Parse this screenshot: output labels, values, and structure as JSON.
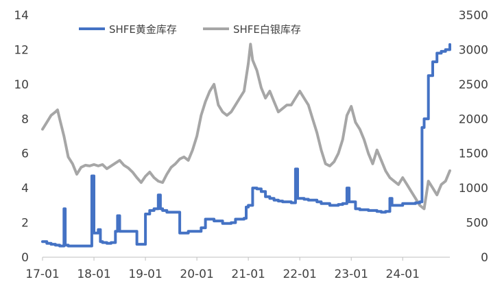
{
  "chart_data": {
    "type": "line",
    "title": "",
    "xlabel": "",
    "ylabel": "",
    "y2label": "",
    "x_tick_labels": [
      "17-01",
      "18-01",
      "19-01",
      "20-01",
      "21-01",
      "22-01",
      "23-01",
      "24-01"
    ],
    "x_ticks_index": [
      0,
      12,
      24,
      36,
      48,
      60,
      72,
      84
    ],
    "ylim": [
      0,
      14
    ],
    "y_ticks": [
      0,
      2,
      4,
      6,
      8,
      10,
      12,
      14
    ],
    "y2lim": [
      0,
      3500
    ],
    "y2_ticks": [
      0,
      500,
      1000,
      1500,
      2000,
      2500,
      3000,
      3500
    ],
    "legend_position": "top",
    "grid": false,
    "series": [
      {
        "name": "SHFE黄金库存",
        "axis": "left",
        "color": "#4472C4",
        "points": [
          [
            0,
            0.9
          ],
          [
            1,
            0.8
          ],
          [
            2,
            0.75
          ],
          [
            3,
            0.7
          ],
          [
            4,
            0.65
          ],
          [
            5,
            2.8
          ],
          [
            5.3,
            0.7
          ],
          [
            6,
            0.65
          ],
          [
            7,
            0.65
          ],
          [
            8,
            0.65
          ],
          [
            9,
            0.65
          ],
          [
            10,
            0.65
          ],
          [
            11,
            0.65
          ],
          [
            11.5,
            4.7
          ],
          [
            12,
            1.4
          ],
          [
            13,
            1.6
          ],
          [
            13.5,
            0.9
          ],
          [
            14,
            0.85
          ],
          [
            15,
            0.8
          ],
          [
            16,
            0.85
          ],
          [
            17,
            1.5
          ],
          [
            17.5,
            2.4
          ],
          [
            18,
            1.5
          ],
          [
            19,
            1.5
          ],
          [
            20,
            1.5
          ],
          [
            21,
            1.5
          ],
          [
            22,
            0.75
          ],
          [
            23,
            0.75
          ],
          [
            24,
            2.5
          ],
          [
            25,
            2.7
          ],
          [
            26,
            2.8
          ],
          [
            27,
            3.6
          ],
          [
            27.5,
            2.8
          ],
          [
            28,
            2.7
          ],
          [
            29,
            2.6
          ],
          [
            30,
            2.6
          ],
          [
            31,
            2.6
          ],
          [
            32,
            1.4
          ],
          [
            33,
            1.4
          ],
          [
            34,
            1.5
          ],
          [
            35,
            1.5
          ],
          [
            36,
            1.5
          ],
          [
            37,
            1.7
          ],
          [
            38,
            2.2
          ],
          [
            39,
            2.2
          ],
          [
            40,
            2.1
          ],
          [
            41,
            2.1
          ],
          [
            42,
            1.95
          ],
          [
            43,
            1.95
          ],
          [
            44,
            2.0
          ],
          [
            45,
            2.2
          ],
          [
            46,
            2.2
          ],
          [
            47,
            2.25
          ],
          [
            47.5,
            2.9
          ],
          [
            48,
            3.0
          ],
          [
            49,
            4.0
          ],
          [
            50,
            3.95
          ],
          [
            51,
            3.8
          ],
          [
            52,
            3.5
          ],
          [
            53,
            3.4
          ],
          [
            54,
            3.3
          ],
          [
            55,
            3.25
          ],
          [
            56,
            3.2
          ],
          [
            57,
            3.2
          ],
          [
            58,
            3.15
          ],
          [
            59,
            5.1
          ],
          [
            59.5,
            3.4
          ],
          [
            60,
            3.4
          ],
          [
            61,
            3.35
          ],
          [
            62,
            3.3
          ],
          [
            63,
            3.3
          ],
          [
            64,
            3.2
          ],
          [
            65,
            3.1
          ],
          [
            66,
            3.1
          ],
          [
            67,
            3.0
          ],
          [
            68,
            3.0
          ],
          [
            69,
            3.05
          ],
          [
            70,
            3.1
          ],
          [
            71,
            4.0
          ],
          [
            71.5,
            3.2
          ],
          [
            72,
            3.2
          ],
          [
            73,
            2.8
          ],
          [
            74,
            2.75
          ],
          [
            75,
            2.75
          ],
          [
            76,
            2.7
          ],
          [
            77,
            2.7
          ],
          [
            78,
            2.65
          ],
          [
            79,
            2.6
          ],
          [
            80,
            2.65
          ],
          [
            81,
            3.4
          ],
          [
            81.5,
            3.0
          ],
          [
            82,
            3.0
          ],
          [
            83,
            3.0
          ],
          [
            84,
            3.1
          ],
          [
            85,
            3.1
          ],
          [
            86,
            3.1
          ],
          [
            87,
            3.15
          ],
          [
            88,
            3.2
          ],
          [
            88.5,
            7.5
          ],
          [
            89,
            8.0
          ],
          [
            90,
            10.5
          ],
          [
            91,
            11.3
          ],
          [
            92,
            11.8
          ],
          [
            93,
            11.9
          ],
          [
            94,
            12.0
          ],
          [
            95,
            12.3
          ]
        ]
      },
      {
        "name": "SHFE白银库存",
        "axis": "right",
        "color": "#A6A6A6",
        "points": [
          [
            0,
            1850
          ],
          [
            1,
            1950
          ],
          [
            2,
            2050
          ],
          [
            3,
            2100
          ],
          [
            3.5,
            2130
          ],
          [
            4,
            2000
          ],
          [
            5,
            1750
          ],
          [
            6,
            1450
          ],
          [
            7,
            1350
          ],
          [
            8,
            1200
          ],
          [
            9,
            1300
          ],
          [
            10,
            1330
          ],
          [
            11,
            1320
          ],
          [
            12,
            1340
          ],
          [
            13,
            1320
          ],
          [
            14,
            1340
          ],
          [
            15,
            1280
          ],
          [
            16,
            1320
          ],
          [
            17,
            1360
          ],
          [
            18,
            1400
          ],
          [
            19,
            1330
          ],
          [
            20,
            1290
          ],
          [
            21,
            1230
          ],
          [
            22,
            1150
          ],
          [
            23,
            1080
          ],
          [
            24,
            1170
          ],
          [
            25,
            1230
          ],
          [
            26,
            1150
          ],
          [
            27,
            1100
          ],
          [
            28,
            1080
          ],
          [
            29,
            1200
          ],
          [
            30,
            1300
          ],
          [
            31,
            1350
          ],
          [
            32,
            1420
          ],
          [
            33,
            1450
          ],
          [
            34,
            1400
          ],
          [
            35,
            1550
          ],
          [
            36,
            1750
          ],
          [
            37,
            2050
          ],
          [
            38,
            2250
          ],
          [
            39,
            2400
          ],
          [
            40,
            2500
          ],
          [
            41,
            2200
          ],
          [
            42,
            2100
          ],
          [
            43,
            2050
          ],
          [
            44,
            2100
          ],
          [
            45,
            2200
          ],
          [
            46,
            2300
          ],
          [
            47,
            2400
          ],
          [
            48,
            2800
          ],
          [
            48.5,
            3080
          ],
          [
            49,
            2850
          ],
          [
            50,
            2700
          ],
          [
            51,
            2450
          ],
          [
            52,
            2300
          ],
          [
            53,
            2400
          ],
          [
            54,
            2250
          ],
          [
            55,
            2100
          ],
          [
            56,
            2150
          ],
          [
            57,
            2200
          ],
          [
            58,
            2200
          ],
          [
            59,
            2300
          ],
          [
            60,
            2400
          ],
          [
            61,
            2300
          ],
          [
            62,
            2200
          ],
          [
            63,
            2000
          ],
          [
            64,
            1800
          ],
          [
            65,
            1550
          ],
          [
            66,
            1350
          ],
          [
            67,
            1320
          ],
          [
            68,
            1380
          ],
          [
            69,
            1500
          ],
          [
            70,
            1700
          ],
          [
            71,
            2050
          ],
          [
            72,
            2180
          ],
          [
            73,
            1950
          ],
          [
            74,
            1850
          ],
          [
            75,
            1700
          ],
          [
            76,
            1500
          ],
          [
            77,
            1350
          ],
          [
            78,
            1550
          ],
          [
            79,
            1400
          ],
          [
            80,
            1250
          ],
          [
            81,
            1150
          ],
          [
            82,
            1100
          ],
          [
            83,
            1050
          ],
          [
            84,
            1150
          ],
          [
            85,
            1050
          ],
          [
            86,
            950
          ],
          [
            87,
            850
          ],
          [
            88,
            750
          ],
          [
            89,
            700
          ],
          [
            90,
            1100
          ],
          [
            91,
            1000
          ],
          [
            92,
            900
          ],
          [
            93,
            1050
          ],
          [
            94,
            1100
          ],
          [
            95,
            1250
          ]
        ]
      }
    ]
  }
}
